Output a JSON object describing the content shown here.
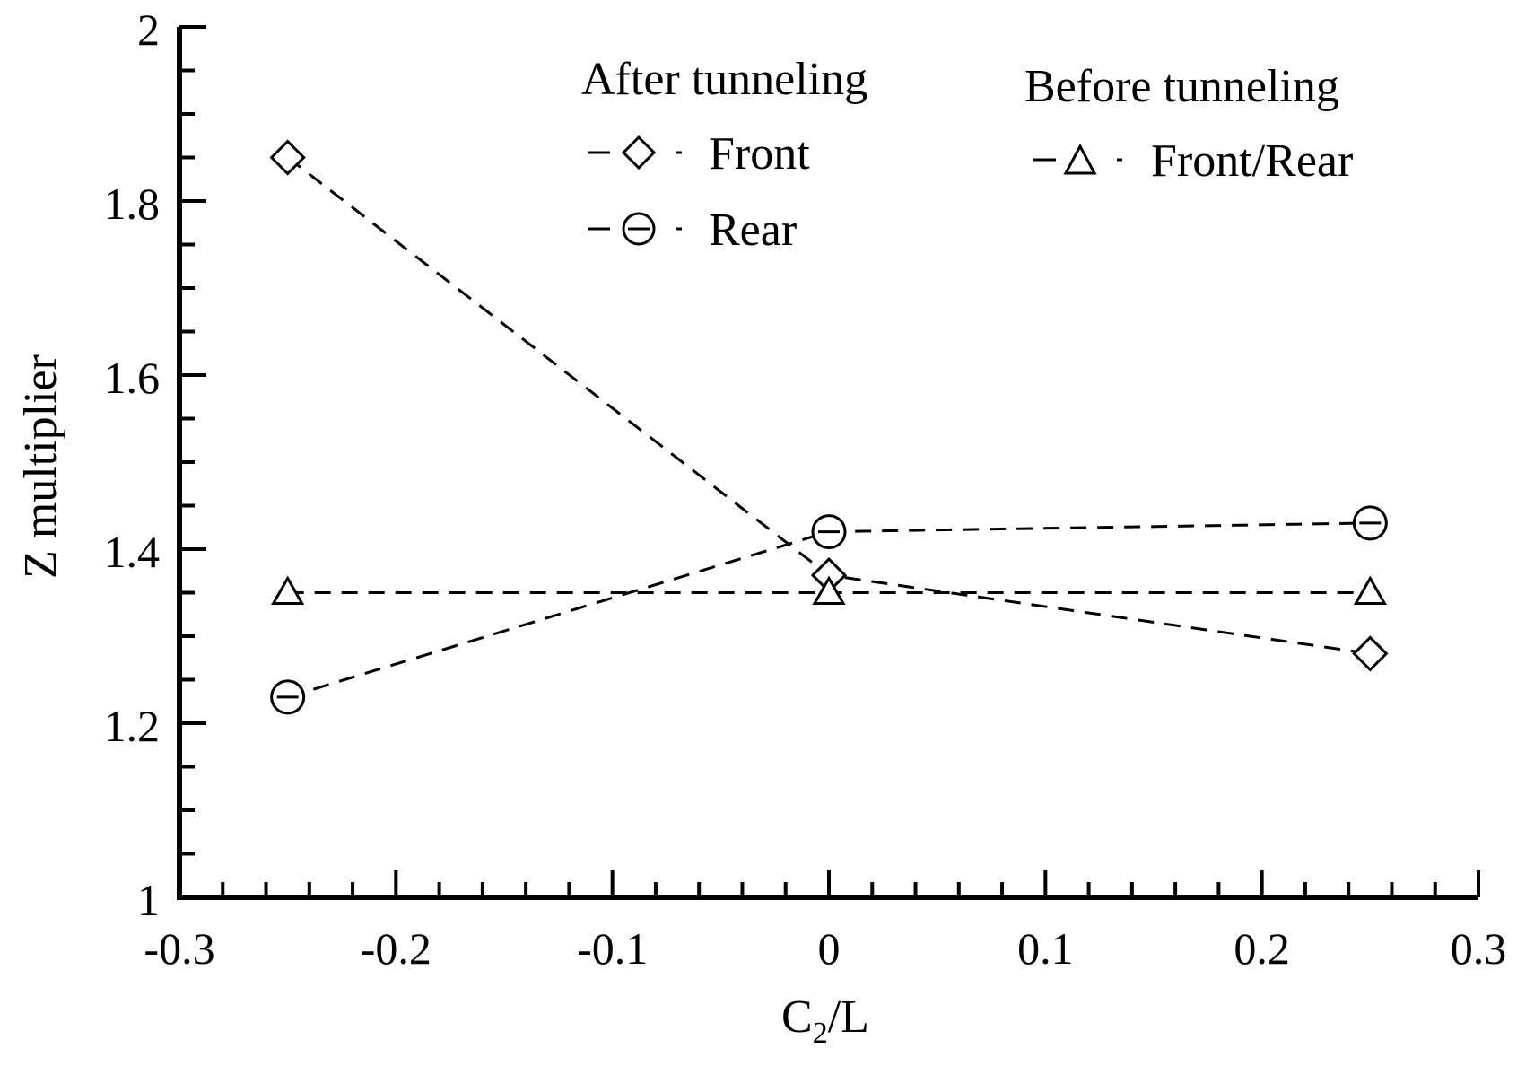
{
  "chart_data": {
    "type": "line",
    "xlabel_main": "C",
    "xlabel_sub": "2",
    "xlabel_tail": "/L",
    "ylabel": "Z multiplier",
    "xlim": [
      -0.3,
      0.3
    ],
    "ylim": [
      1,
      2
    ],
    "x_ticks": [
      -0.3,
      -0.2,
      -0.1,
      0,
      0.1,
      0.2,
      0.3
    ],
    "x_tick_labels": [
      "-0.3",
      "-0.2",
      "-0.1",
      "0",
      "0.1",
      "0.2",
      "0.3"
    ],
    "y_ticks": [
      1,
      1.2,
      1.4,
      1.6,
      1.8,
      2
    ],
    "y_tick_labels": [
      "1",
      "1.2",
      "1.4",
      "1.6",
      "1.8",
      "2"
    ],
    "legend_groups": [
      "After tunneling",
      "Before tunneling"
    ],
    "series": [
      {
        "name": "Front",
        "group": "After tunneling",
        "marker": "diamond",
        "x": [
          -0.25,
          0,
          0.25
        ],
        "y": [
          1.85,
          1.37,
          1.28
        ]
      },
      {
        "name": "Rear",
        "group": "After tunneling",
        "marker": "circle",
        "x": [
          -0.25,
          0,
          0.25
        ],
        "y": [
          1.23,
          1.42,
          1.43
        ]
      },
      {
        "name": "Front/Rear",
        "group": "Before tunneling",
        "marker": "triangle",
        "x": [
          -0.25,
          0,
          0.25
        ],
        "y": [
          1.35,
          1.35,
          1.35
        ]
      }
    ],
    "line_style": "dashed",
    "color": "#000000",
    "grid": false,
    "legend_position": "top-right"
  }
}
